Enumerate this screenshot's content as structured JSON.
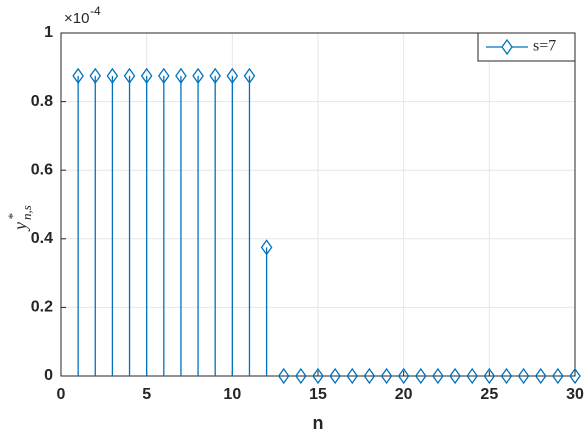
{
  "chart_data": {
    "type": "stem",
    "xlabel": "n",
    "ylabel": {
      "base": "y",
      "sup": "*",
      "sub": "n,s"
    },
    "y_scale": {
      "base": "×10",
      "exponent": "-4"
    },
    "x": [
      1,
      2,
      3,
      4,
      5,
      6,
      7,
      8,
      9,
      10,
      11,
      12,
      13,
      14,
      15,
      16,
      17,
      18,
      19,
      20,
      21,
      22,
      23,
      24,
      25,
      26,
      27,
      28,
      29,
      30
    ],
    "series": [
      {
        "name": "s=7",
        "color": "#0072bd",
        "values": [
          0.875,
          0.875,
          0.875,
          0.875,
          0.875,
          0.875,
          0.875,
          0.875,
          0.875,
          0.875,
          0.875,
          0.375,
          0,
          0,
          0,
          0,
          0,
          0,
          0,
          0,
          0,
          0,
          0,
          0,
          0,
          0,
          0,
          0,
          0,
          0
        ]
      }
    ],
    "xlim": [
      0,
      30
    ],
    "xticks": [
      0,
      5,
      10,
      15,
      20,
      25,
      30
    ],
    "ylim": [
      0,
      1
    ],
    "yticks": [
      0,
      0.2,
      0.4,
      0.6,
      0.8,
      1
    ],
    "grid": true,
    "legend": "top-right"
  }
}
